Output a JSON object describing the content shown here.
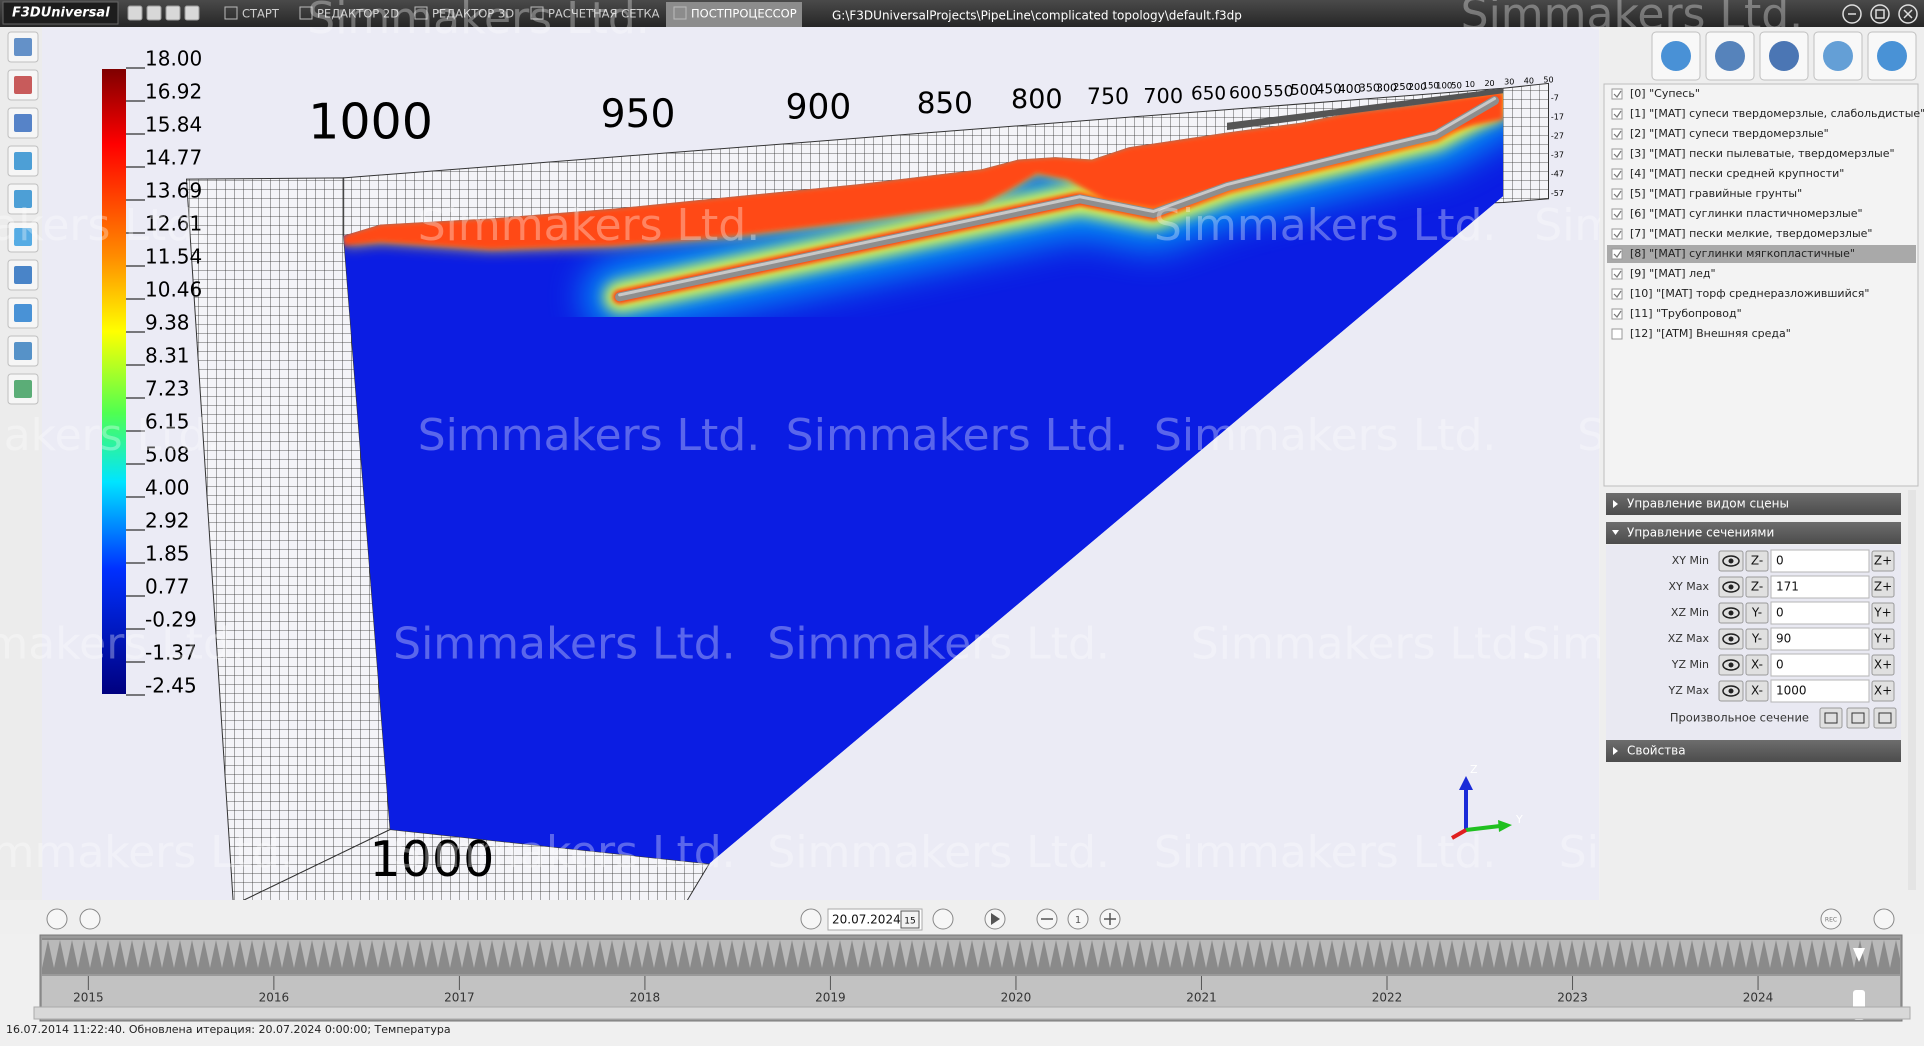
{
  "app": {
    "logo": "F3DUniversal",
    "tabs": [
      "СТАРТ",
      "РЕДАКТОР 2D",
      "РЕДАКТОР 3D",
      "РАСЧЕТНАЯ СЕТКА",
      "ПОСТПРОЦЕССОР"
    ],
    "active_tab": 4,
    "file_path": "G:\\F3DUniversalProjects\\PipeLine\\complicated topology\\default.f3dp"
  },
  "viewport": {
    "watermark": "Simmakers Ltd.",
    "colorbar": [
      "18.00",
      "16.92",
      "15.84",
      "14.77",
      "13.69",
      "12.61",
      "11.54",
      "10.46",
      "9.38",
      "8.31",
      "7.23",
      "6.15",
      "5.08",
      "4.00",
      "2.92",
      "1.85",
      "0.77",
      "-0.29",
      "-1.37",
      "-2.45"
    ],
    "axis_labels_top": [
      "1000",
      "950",
      "900",
      "850",
      "800",
      "750",
      "700",
      "650",
      "600",
      "550",
      "500",
      "450",
      "400",
      "350",
      "300",
      "250",
      "200",
      "150",
      "100",
      "50"
    ],
    "axis_labels_right": [
      "10",
      "20",
      "30",
      "40",
      "50"
    ],
    "depth_labels": [
      "-7",
      "-17",
      "-27",
      "-37",
      "-47",
      "-57"
    ],
    "bottom_label": "1000",
    "gizmo": [
      "Z",
      "Y"
    ]
  },
  "materials": [
    {
      "label": "[0] \"Супесь\"",
      "checked": true
    },
    {
      "label": "[1] \"[MAT] супеси твердомерзлые, слабольдистые\"",
      "checked": true
    },
    {
      "label": "[2] \"[MAT] супеси твердомерзлые\"",
      "checked": true
    },
    {
      "label": "[3] \"[MAT] пески пылеватые, твердомерзлые\"",
      "checked": true
    },
    {
      "label": "[4] \"[MAT] пески средней крупности\"",
      "checked": true
    },
    {
      "label": "[5] \"[MAT] гравийные грунты\"",
      "checked": true
    },
    {
      "label": "[6] \"[MAT] суглинки пластичномерзлые\"",
      "checked": true
    },
    {
      "label": "[7] \"[MAT] пески мелкие, твердомерзлые\"",
      "checked": true
    },
    {
      "label": "[8] \"[MAT] суглинки мягкопластичные\"",
      "checked": true
    },
    {
      "label": "[9] \"[MAT] лед\"",
      "checked": true
    },
    {
      "label": "[10] \"[MAT] торф среднеразложившийся\"",
      "checked": true
    },
    {
      "label": "[11] \"Трубопровод\"",
      "checked": true
    },
    {
      "label": "[12] \"[ATM] Внешняя среда\"",
      "checked": false
    }
  ],
  "selected_material": 8,
  "panel": {
    "sections": [
      "Управление видом сцены",
      "Управление сечениями",
      "Свойства"
    ],
    "cut_rows": [
      {
        "label": "XY Min",
        "minus": "Z-",
        "value": "0",
        "plus": "Z+"
      },
      {
        "label": "XY Max",
        "minus": "Z-",
        "value": "171",
        "plus": "Z+"
      },
      {
        "label": "XZ Min",
        "minus": "Y-",
        "value": "0",
        "plus": "Y+"
      },
      {
        "label": "XZ Max",
        "minus": "Y-",
        "value": "90",
        "plus": "Y+"
      },
      {
        "label": "YZ Min",
        "minus": "X-",
        "value": "0",
        "plus": "X+"
      },
      {
        "label": "YZ Max",
        "minus": "X-",
        "value": "1000",
        "plus": "X+"
      }
    ],
    "arbitrary_cut": "Произвольное сечение"
  },
  "timeline": {
    "date": "20.07.2024",
    "calendar": "15",
    "step": "1",
    "rec": "REC",
    "years": [
      "2015",
      "2016",
      "2017",
      "2018",
      "2019",
      "2020",
      "2021",
      "2022",
      "2023",
      "2024"
    ]
  },
  "status": "16.07.2014 11:22:40. Обновлена итерация: 20.07.2024 0:00:00; Температура"
}
